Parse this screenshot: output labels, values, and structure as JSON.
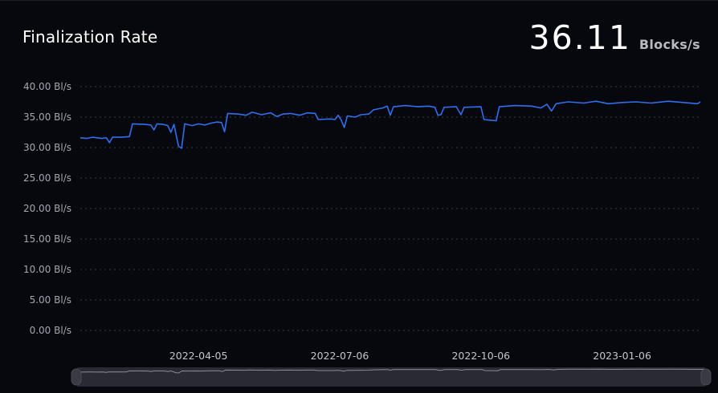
{
  "header": {
    "title": "Finalization Rate",
    "value": "36.11",
    "unit": "Blocks/s"
  },
  "colors": {
    "line": "#2f6fee",
    "grid": "#3a3a48",
    "slider_track": "#2a2a34",
    "slider_handle": "#3a3a44"
  },
  "chart_data": {
    "type": "line",
    "title": "Finalization Rate",
    "xlabel": "",
    "ylabel": "",
    "ylim": [
      0,
      40
    ],
    "yticks": [
      0,
      5,
      10,
      15,
      20,
      25,
      30,
      35,
      40
    ],
    "ytick_labels": [
      "0.00 Bl/s",
      "5.00 Bl/s",
      "10.00 Bl/s",
      "15.00 Bl/s",
      "20.00 Bl/s",
      "25.00 Bl/s",
      "30.00 Bl/s",
      "35.00 Bl/s",
      "40.00 Bl/s"
    ],
    "xlim": [
      "2022-01-18",
      "2023-02-27"
    ],
    "xtick_labels": [
      {
        "date": "2022-04-05",
        "label": "2022-04-05"
      },
      {
        "date": "2022-07-06",
        "label": "2022-07-06"
      },
      {
        "date": "2022-10-06",
        "label": "2022-10-06"
      },
      {
        "date": "2023-01-06",
        "label": "2023-01-06"
      }
    ],
    "grid": true,
    "legend": "none",
    "series": [
      {
        "points": [
          [
            "2022-01-18",
            31.6
          ],
          [
            "2022-01-22",
            31.5
          ],
          [
            "2022-01-26",
            31.7
          ],
          [
            "2022-02-01",
            31.5
          ],
          [
            "2022-02-04",
            31.6
          ],
          [
            "2022-02-06",
            30.8
          ],
          [
            "2022-02-08",
            31.7
          ],
          [
            "2022-02-14",
            31.7
          ],
          [
            "2022-02-19",
            31.8
          ],
          [
            "2022-02-21",
            33.9
          ],
          [
            "2022-03-01",
            33.8
          ],
          [
            "2022-03-05",
            33.7
          ],
          [
            "2022-03-07",
            32.9
          ],
          [
            "2022-03-09",
            33.9
          ],
          [
            "2022-03-13",
            33.8
          ],
          [
            "2022-03-16",
            33.6
          ],
          [
            "2022-03-18",
            32.5
          ],
          [
            "2022-03-20",
            33.8
          ],
          [
            "2022-03-23",
            30.2
          ],
          [
            "2022-03-25",
            29.9
          ],
          [
            "2022-03-27",
            33.9
          ],
          [
            "2022-04-01",
            33.6
          ],
          [
            "2022-04-05",
            33.9
          ],
          [
            "2022-04-09",
            33.7
          ],
          [
            "2022-04-13",
            34.0
          ],
          [
            "2022-04-17",
            34.2
          ],
          [
            "2022-04-20",
            34.1
          ],
          [
            "2022-04-22",
            32.6
          ],
          [
            "2022-04-24",
            35.6
          ],
          [
            "2022-05-01",
            35.5
          ],
          [
            "2022-05-06",
            35.3
          ],
          [
            "2022-05-10",
            35.8
          ],
          [
            "2022-05-16",
            35.4
          ],
          [
            "2022-05-22",
            35.7
          ],
          [
            "2022-05-26",
            35.1
          ],
          [
            "2022-05-30",
            35.5
          ],
          [
            "2022-06-04",
            35.6
          ],
          [
            "2022-06-10",
            35.3
          ],
          [
            "2022-06-15",
            35.7
          ],
          [
            "2022-06-20",
            35.6
          ],
          [
            "2022-06-22",
            34.6
          ],
          [
            "2022-06-30",
            34.7
          ],
          [
            "2022-07-03",
            34.6
          ],
          [
            "2022-07-05",
            35.3
          ],
          [
            "2022-07-07",
            34.5
          ],
          [
            "2022-07-09",
            33.3
          ],
          [
            "2022-07-11",
            35.2
          ],
          [
            "2022-07-16",
            35.0
          ],
          [
            "2022-07-20",
            35.4
          ],
          [
            "2022-07-25",
            35.5
          ],
          [
            "2022-07-28",
            36.2
          ],
          [
            "2022-08-03",
            36.5
          ],
          [
            "2022-08-06",
            36.8
          ],
          [
            "2022-08-08",
            35.3
          ],
          [
            "2022-08-10",
            36.7
          ],
          [
            "2022-08-18",
            36.9
          ],
          [
            "2022-08-26",
            36.7
          ],
          [
            "2022-09-02",
            36.8
          ],
          [
            "2022-09-06",
            36.6
          ],
          [
            "2022-09-08",
            35.3
          ],
          [
            "2022-09-10",
            35.4
          ],
          [
            "2022-09-12",
            36.6
          ],
          [
            "2022-09-20",
            36.7
          ],
          [
            "2022-09-23",
            35.4
          ],
          [
            "2022-09-25",
            36.6
          ],
          [
            "2022-10-06",
            36.7
          ],
          [
            "2022-10-08",
            34.6
          ],
          [
            "2022-10-12",
            34.5
          ],
          [
            "2022-10-16",
            34.4
          ],
          [
            "2022-10-18",
            36.7
          ],
          [
            "2022-10-28",
            36.9
          ],
          [
            "2022-11-08",
            36.8
          ],
          [
            "2022-11-14",
            36.5
          ],
          [
            "2022-11-18",
            37.1
          ],
          [
            "2022-11-21",
            36.0
          ],
          [
            "2022-11-24",
            37.2
          ],
          [
            "2022-12-02",
            37.5
          ],
          [
            "2022-12-12",
            37.3
          ],
          [
            "2022-12-20",
            37.6
          ],
          [
            "2022-12-28",
            37.2
          ],
          [
            "2023-01-06",
            37.4
          ],
          [
            "2023-01-15",
            37.5
          ],
          [
            "2023-01-25",
            37.3
          ],
          [
            "2023-02-05",
            37.6
          ],
          [
            "2023-02-15",
            37.4
          ],
          [
            "2023-02-24",
            37.2
          ],
          [
            "2023-02-26",
            37.5
          ]
        ]
      }
    ]
  }
}
